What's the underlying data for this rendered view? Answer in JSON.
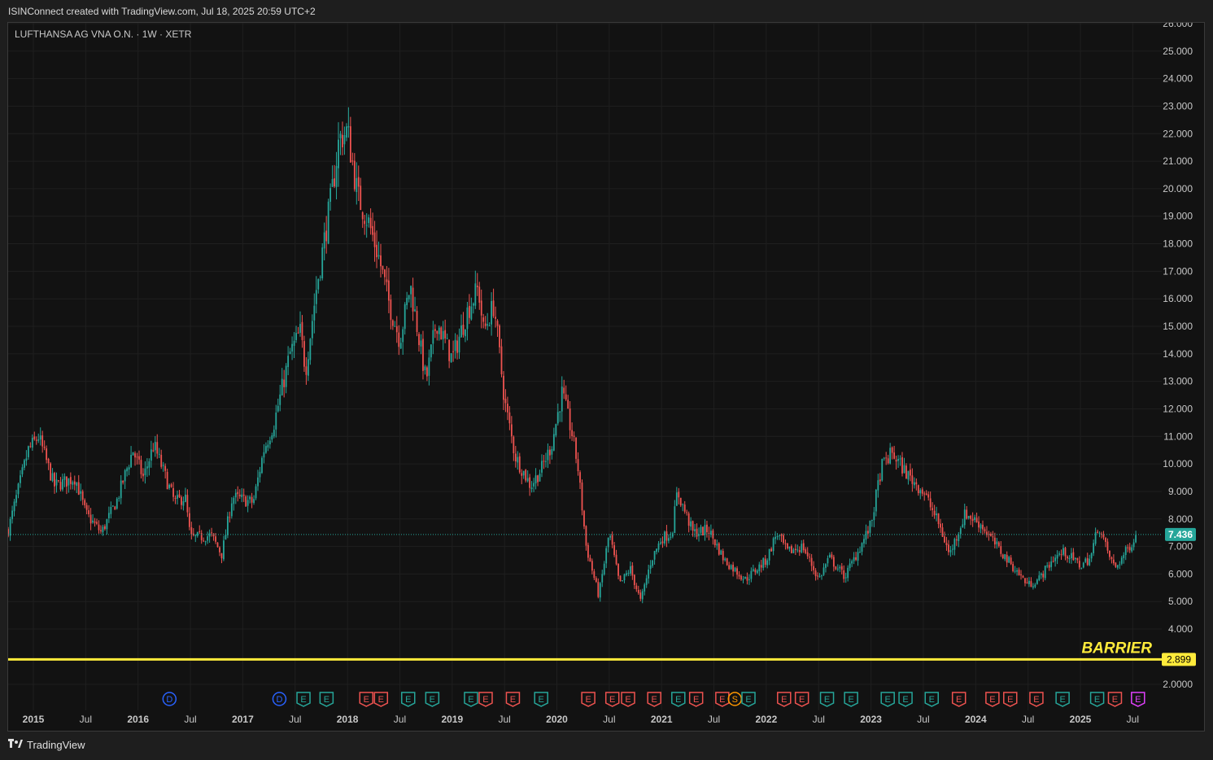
{
  "header": {
    "text": "ISINConnect created with TradingView.com, Jul 18, 2025 20:59 UTC+2"
  },
  "legend": {
    "text": "LUFTHANSA AG VNA O.N. · 1W · XETR"
  },
  "footer": {
    "brand": "TradingView"
  },
  "colors": {
    "bg": "#121212",
    "grid": "#1f1f1f",
    "up": "#26a69a",
    "down": "#ef5350",
    "barrier": "#ffeb3b",
    "axis_text": "#c8c8c8"
  },
  "chart_data": {
    "type": "candlestick",
    "interval": "1W",
    "exchange": "XETR",
    "symbol": "LUFTHANSA AG VNA O.N.",
    "ylim": [
      1.5,
      26.0
    ],
    "y_ticks": [
      "26.000",
      "25.000",
      "24.000",
      "23.000",
      "22.000",
      "21.000",
      "20.000",
      "19.000",
      "18.000",
      "17.000",
      "16.000",
      "15.000",
      "14.000",
      "13.000",
      "12.000",
      "11.000",
      "10.000",
      "9.000",
      "8.000",
      "7.000",
      "6.000",
      "5.000",
      "4.000",
      "2.0000"
    ],
    "x_ticks": [
      {
        "label": "2015",
        "t": 2015.0,
        "bold": true
      },
      {
        "label": "Jul",
        "t": 2015.5
      },
      {
        "label": "2016",
        "t": 2016.0,
        "bold": true
      },
      {
        "label": "Jul",
        "t": 2016.5
      },
      {
        "label": "2017",
        "t": 2017.0,
        "bold": true
      },
      {
        "label": "Jul",
        "t": 2017.5
      },
      {
        "label": "2018",
        "t": 2018.0,
        "bold": true
      },
      {
        "label": "Jul",
        "t": 2018.5
      },
      {
        "label": "2019",
        "t": 2019.0,
        "bold": true
      },
      {
        "label": "Jul",
        "t": 2019.5
      },
      {
        "label": "2020",
        "t": 2020.0,
        "bold": true
      },
      {
        "label": "Jul",
        "t": 2020.5
      },
      {
        "label": "2021",
        "t": 2021.0,
        "bold": true
      },
      {
        "label": "Jul",
        "t": 2021.5
      },
      {
        "label": "2022",
        "t": 2022.0,
        "bold": true
      },
      {
        "label": "Jul",
        "t": 2022.5
      },
      {
        "label": "2023",
        "t": 2023.0,
        "bold": true
      },
      {
        "label": "Jul",
        "t": 2023.5
      },
      {
        "label": "2024",
        "t": 2024.0,
        "bold": true
      },
      {
        "label": "Jul",
        "t": 2024.5
      },
      {
        "label": "2025",
        "t": 2025.0,
        "bold": true
      },
      {
        "label": "Jul",
        "t": 2025.5
      }
    ],
    "price_path": [
      [
        2014.76,
        7.6
      ],
      [
        2014.95,
        10.5
      ],
      [
        2015.05,
        11.0
      ],
      [
        2015.2,
        9.2
      ],
      [
        2015.4,
        9.5
      ],
      [
        2015.5,
        8.2
      ],
      [
        2015.65,
        7.5
      ],
      [
        2015.8,
        8.7
      ],
      [
        2015.95,
        10.5
      ],
      [
        2016.05,
        9.5
      ],
      [
        2016.15,
        10.7
      ],
      [
        2016.35,
        8.6
      ],
      [
        2016.45,
        8.8
      ],
      [
        2016.5,
        7.3
      ],
      [
        2016.7,
        7.4
      ],
      [
        2016.8,
        6.7
      ],
      [
        2016.9,
        8.8
      ],
      [
        2017.1,
        8.6
      ],
      [
        2017.2,
        10.5
      ],
      [
        2017.3,
        11.5
      ],
      [
        2017.45,
        14.0
      ],
      [
        2017.55,
        14.8
      ],
      [
        2017.6,
        13.4
      ],
      [
        2017.7,
        16.3
      ],
      [
        2017.85,
        19.8
      ],
      [
        2017.92,
        21.8
      ],
      [
        2018.0,
        22.1
      ],
      [
        2018.1,
        19.7
      ],
      [
        2018.2,
        18.8
      ],
      [
        2018.3,
        17.5
      ],
      [
        2018.4,
        15.8
      ],
      [
        2018.5,
        14.5
      ],
      [
        2018.6,
        16.5
      ],
      [
        2018.75,
        13.0
      ],
      [
        2018.85,
        15.2
      ],
      [
        2019.0,
        13.8
      ],
      [
        2019.15,
        15.6
      ],
      [
        2019.25,
        16.4
      ],
      [
        2019.3,
        14.8
      ],
      [
        2019.4,
        15.8
      ],
      [
        2019.5,
        12.3
      ],
      [
        2019.6,
        10.3
      ],
      [
        2019.75,
        9.2
      ],
      [
        2019.85,
        9.8
      ],
      [
        2019.95,
        10.7
      ],
      [
        2020.05,
        12.6
      ],
      [
        2020.15,
        11.0
      ],
      [
        2020.2,
        9.9
      ],
      [
        2020.28,
        7.0
      ],
      [
        2020.4,
        5.2
      ],
      [
        2020.5,
        7.5
      ],
      [
        2020.6,
        5.6
      ],
      [
        2020.7,
        6.2
      ],
      [
        2020.8,
        5.0
      ],
      [
        2020.9,
        6.5
      ],
      [
        2021.0,
        7.3
      ],
      [
        2021.1,
        7.5
      ],
      [
        2021.15,
        9.0
      ],
      [
        2021.3,
        7.5
      ],
      [
        2021.45,
        7.6
      ],
      [
        2021.6,
        6.5
      ],
      [
        2021.8,
        5.8
      ],
      [
        2022.0,
        6.5
      ],
      [
        2022.1,
        7.5
      ],
      [
        2022.2,
        6.8
      ],
      [
        2022.35,
        7.0
      ],
      [
        2022.5,
        5.8
      ],
      [
        2022.6,
        6.6
      ],
      [
        2022.75,
        5.9
      ],
      [
        2022.9,
        7.0
      ],
      [
        2023.0,
        7.8
      ],
      [
        2023.1,
        9.9
      ],
      [
        2023.2,
        10.4
      ],
      [
        2023.35,
        9.6
      ],
      [
        2023.5,
        9.0
      ],
      [
        2023.65,
        7.8
      ],
      [
        2023.75,
        6.7
      ],
      [
        2023.9,
        8.2
      ],
      [
        2024.05,
        7.8
      ],
      [
        2024.2,
        7.0
      ],
      [
        2024.35,
        6.3
      ],
      [
        2024.5,
        5.6
      ],
      [
        2024.6,
        5.8
      ],
      [
        2024.75,
        6.6
      ],
      [
        2024.85,
        6.8
      ],
      [
        2025.0,
        6.3
      ],
      [
        2025.1,
        6.6
      ],
      [
        2025.17,
        7.8
      ],
      [
        2025.25,
        6.9
      ],
      [
        2025.33,
        6.2
      ],
      [
        2025.45,
        6.9
      ],
      [
        2025.54,
        7.436
      ]
    ],
    "last_price": {
      "value": 7.436,
      "label": "7.436"
    },
    "barrier": {
      "value": 2.899,
      "label": "2.899",
      "text": "BARRIER"
    },
    "events": [
      {
        "t": 2016.3,
        "type": "D",
        "color": "#2962ff"
      },
      {
        "t": 2017.35,
        "type": "D",
        "color": "#2962ff"
      },
      {
        "t": 2017.58,
        "type": "E",
        "color": "#26a69a"
      },
      {
        "t": 2017.8,
        "type": "E",
        "color": "#26a69a"
      },
      {
        "t": 2018.18,
        "type": "E",
        "color": "#ef5350"
      },
      {
        "t": 2018.32,
        "type": "E",
        "color": "#ef5350"
      },
      {
        "t": 2018.58,
        "type": "E",
        "color": "#26a69a"
      },
      {
        "t": 2018.81,
        "type": "E",
        "color": "#26a69a"
      },
      {
        "t": 2019.18,
        "type": "E",
        "color": "#26a69a"
      },
      {
        "t": 2019.32,
        "type": "E",
        "color": "#ef5350"
      },
      {
        "t": 2019.58,
        "type": "E",
        "color": "#ef5350"
      },
      {
        "t": 2019.85,
        "type": "E",
        "color": "#26a69a"
      },
      {
        "t": 2020.3,
        "type": "E",
        "color": "#ef5350"
      },
      {
        "t": 2020.53,
        "type": "E",
        "color": "#ef5350"
      },
      {
        "t": 2020.68,
        "type": "E",
        "color": "#ef5350"
      },
      {
        "t": 2020.93,
        "type": "E",
        "color": "#ef5350"
      },
      {
        "t": 2021.16,
        "type": "E",
        "color": "#26a69a"
      },
      {
        "t": 2021.33,
        "type": "E",
        "color": "#ef5350"
      },
      {
        "t": 2021.58,
        "type": "E",
        "color": "#ef5350"
      },
      {
        "t": 2021.7,
        "type": "S",
        "color": "#ff9800"
      },
      {
        "t": 2021.83,
        "type": "E",
        "color": "#26a69a"
      },
      {
        "t": 2022.17,
        "type": "E",
        "color": "#ef5350"
      },
      {
        "t": 2022.34,
        "type": "E",
        "color": "#ef5350"
      },
      {
        "t": 2022.58,
        "type": "E",
        "color": "#26a69a"
      },
      {
        "t": 2022.81,
        "type": "E",
        "color": "#26a69a"
      },
      {
        "t": 2023.16,
        "type": "E",
        "color": "#26a69a"
      },
      {
        "t": 2023.33,
        "type": "E",
        "color": "#26a69a"
      },
      {
        "t": 2023.58,
        "type": "E",
        "color": "#26a69a"
      },
      {
        "t": 2023.84,
        "type": "E",
        "color": "#ef5350"
      },
      {
        "t": 2024.16,
        "type": "E",
        "color": "#ef5350"
      },
      {
        "t": 2024.33,
        "type": "E",
        "color": "#ef5350"
      },
      {
        "t": 2024.58,
        "type": "E",
        "color": "#ef5350"
      },
      {
        "t": 2024.83,
        "type": "E",
        "color": "#26a69a"
      },
      {
        "t": 2025.16,
        "type": "E",
        "color": "#26a69a"
      },
      {
        "t": 2025.33,
        "type": "E",
        "color": "#ef5350"
      },
      {
        "t": 2025.55,
        "type": "E",
        "color": "#e040fb"
      }
    ]
  }
}
